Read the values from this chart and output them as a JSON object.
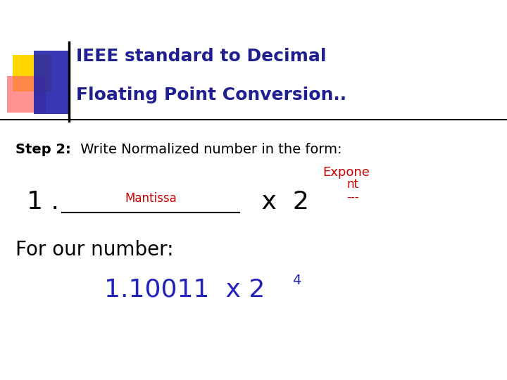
{
  "title_line1": "IEEE standard to Decimal",
  "title_line2": "Floating Point Conversion",
  "title_dots": "..",
  "title_color": "#1F1F8F",
  "bg_color": "#FFFFFF",
  "step2_bold": "Step 2:",
  "step2_rest": " Write Normalized number in the form:",
  "step2_color": "#000000",
  "expone_text": "Expone",
  "nt_text": "nt",
  "dash_text": "---",
  "red_color": "#CC0000",
  "formula_1": "1 .",
  "formula_mantissa": "Mantissa",
  "formula_x2": " x  2",
  "for_number": "For our number:",
  "result_main": "1.10011  x 2",
  "result_super": "4",
  "result_color": "#2222BB",
  "deco_yellow": "#FFD700",
  "deco_red": "#FF6666",
  "deco_blue": "#2222AA",
  "line_color": "#000000",
  "title_fontsize": 18,
  "step2_fontsize": 14,
  "formula_fontsize": 26,
  "for_fontsize": 20,
  "result_fontsize": 26
}
